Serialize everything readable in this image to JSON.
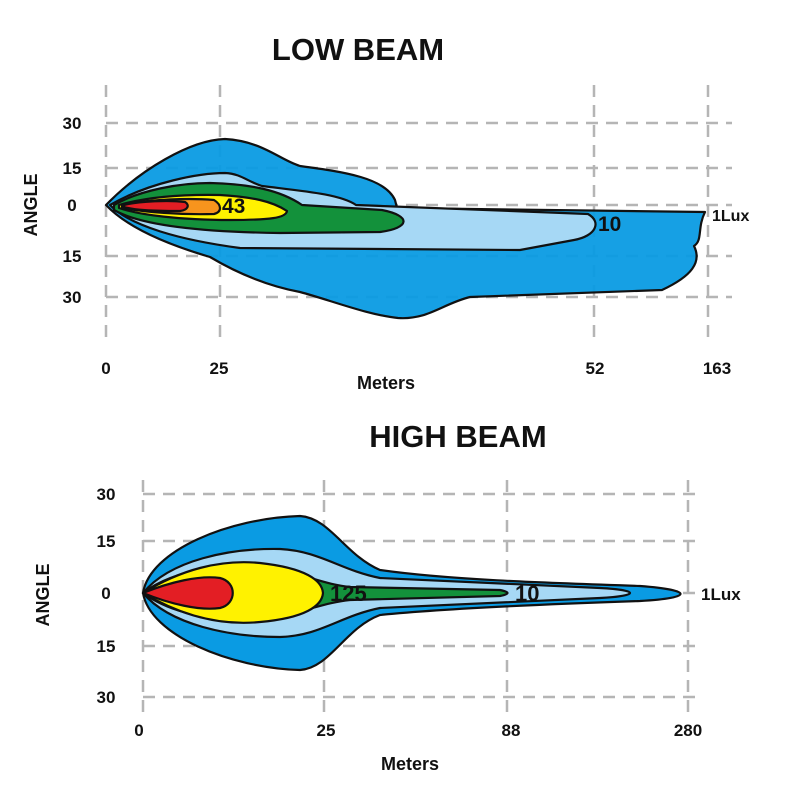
{
  "colors": {
    "outer_1lux": "#0a9be3",
    "light_blue": "#a6d8f5",
    "green": "#13913b",
    "yellow": "#fff200",
    "orange": "#f7941d",
    "red": "#e31e24",
    "grid": "#b5b5b5"
  },
  "low_beam": {
    "title": "LOW BEAM",
    "y_axis_label": "ANGLE",
    "y_ticks": [
      "30",
      "15",
      "0",
      "15",
      "30"
    ],
    "x_ticks": [
      "0",
      "25",
      "52",
      "163"
    ],
    "x_axis_label": "Meters",
    "contour_labels": {
      "inner": "43",
      "middle": "10",
      "outer": "1Lux"
    }
  },
  "high_beam": {
    "title": "HIGH BEAM",
    "y_axis_label": "ANGLE",
    "y_ticks": [
      "30",
      "15",
      "0",
      "15",
      "30"
    ],
    "x_ticks": [
      "0",
      "25",
      "88",
      "280"
    ],
    "x_axis_label": "Meters",
    "contour_labels": {
      "inner": "125",
      "middle": "10",
      "outer": "1Lux"
    }
  }
}
